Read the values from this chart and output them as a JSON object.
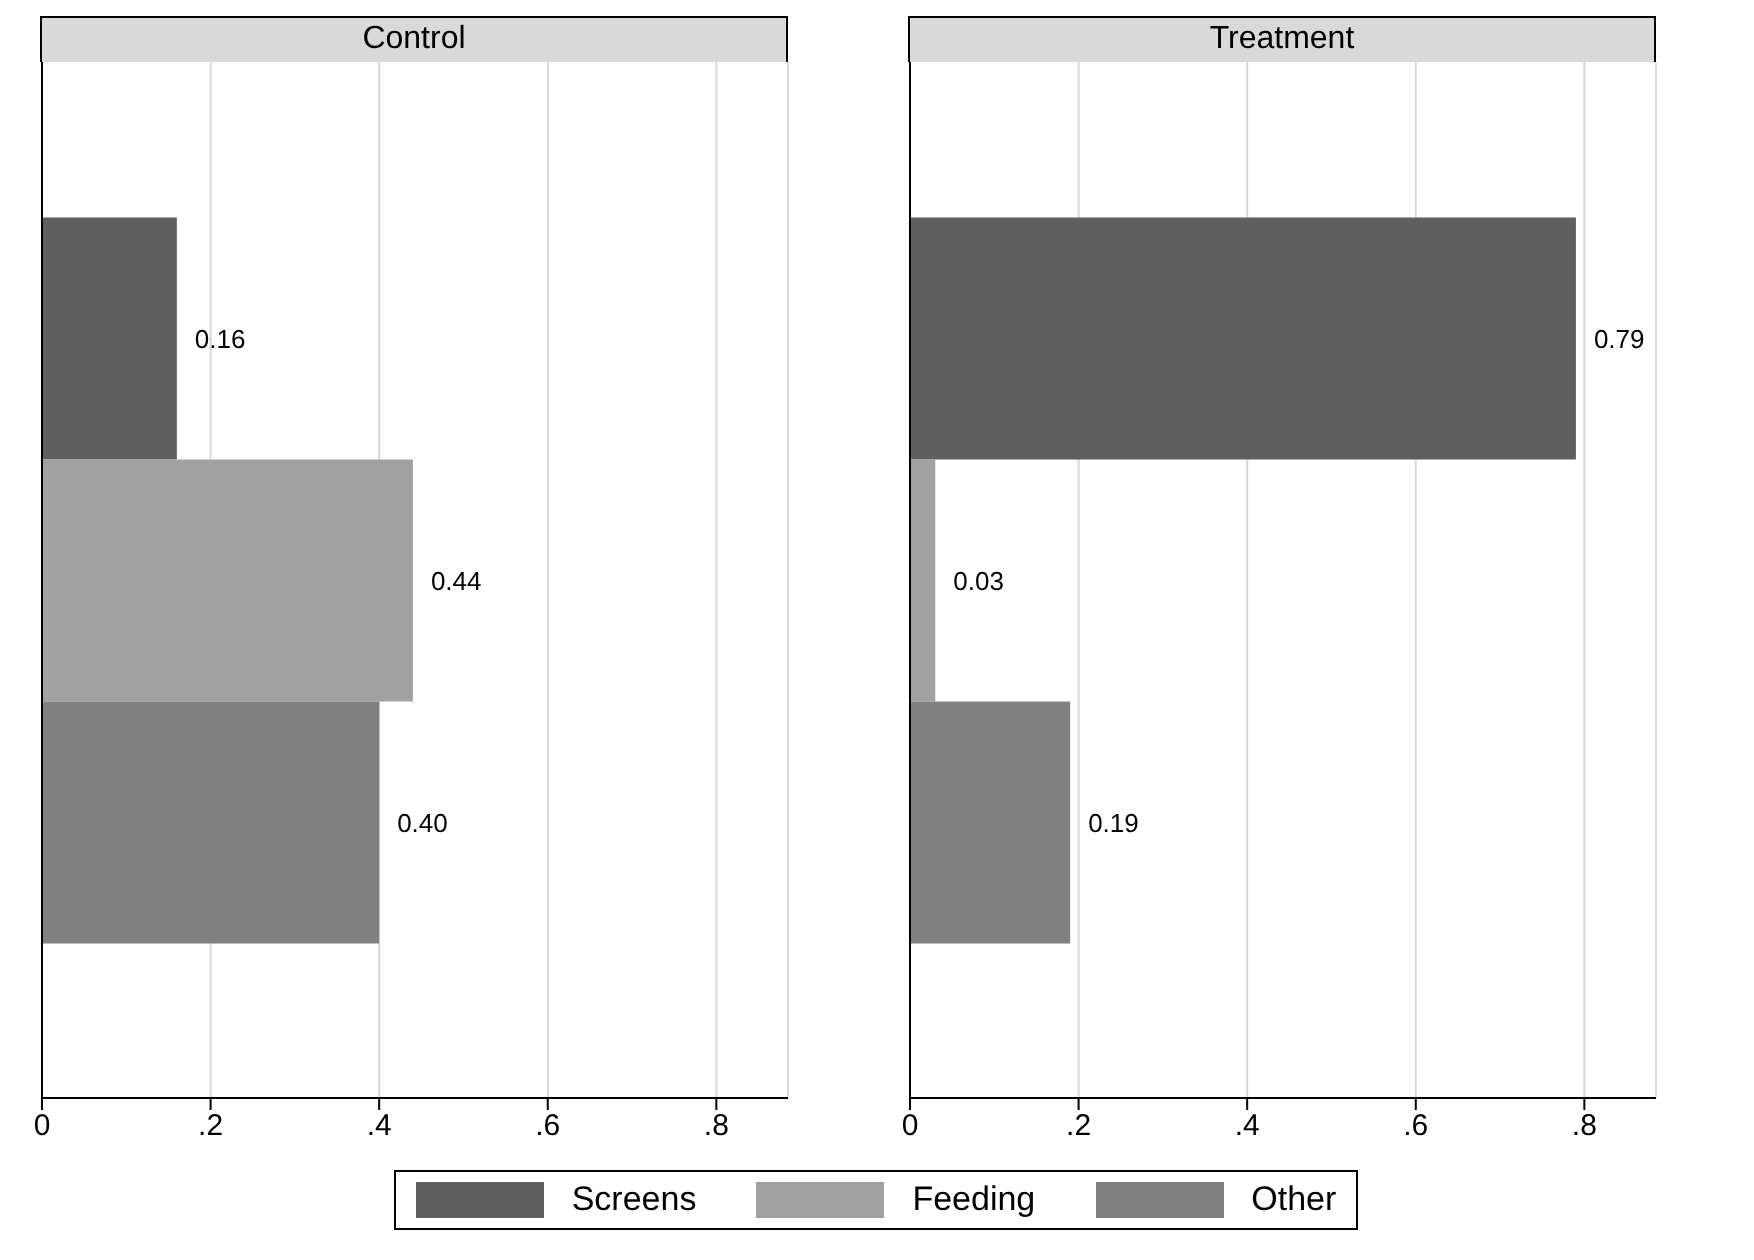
{
  "chart_data": [
    {
      "type": "bar",
      "title": "Control",
      "orientation": "horizontal",
      "categories": [
        null
      ],
      "series": [
        {
          "name": "Screens",
          "color": "#5f5f5f",
          "values": [
            0.16
          ],
          "value_labels": [
            "0.16"
          ]
        },
        {
          "name": "Feeding",
          "color": "#a1a1a1",
          "values": [
            0.44
          ],
          "value_labels": [
            "0.44"
          ]
        },
        {
          "name": "Other",
          "color": "#808080",
          "values": [
            0.4
          ],
          "value_labels": [
            "0.40"
          ]
        }
      ],
      "xlim": [
        0,
        0.885
      ],
      "xticks": [
        0,
        {
          "value": 0.2,
          "label": ".2"
        },
        {
          "value": 0.4,
          "label": ".4"
        },
        {
          "value": 0.6,
          "label": ".6"
        },
        {
          "value": 0.8,
          "label": ".8"
        }
      ],
      "grid": "x",
      "legend": "bottom"
    },
    {
      "type": "bar",
      "title": "Treatment",
      "orientation": "horizontal",
      "categories": [
        null
      ],
      "series": [
        {
          "name": "Screens",
          "color": "#5f5f5f",
          "values": [
            0.79
          ],
          "value_labels": [
            "0.79"
          ]
        },
        {
          "name": "Feeding",
          "color": "#a1a1a1",
          "values": [
            0.03
          ],
          "value_labels": [
            "0.03"
          ]
        },
        {
          "name": "Other",
          "color": "#808080",
          "values": [
            0.19
          ],
          "value_labels": [
            "0.19"
          ]
        }
      ],
      "xlim": [
        0,
        0.885
      ],
      "xticks": [
        0,
        {
          "value": 0.2,
          "label": ".2"
        },
        {
          "value": 0.4,
          "label": ".4"
        },
        {
          "value": 0.6,
          "label": ".6"
        },
        {
          "value": 0.8,
          "label": ".8"
        }
      ],
      "grid": "x"
    }
  ]
}
